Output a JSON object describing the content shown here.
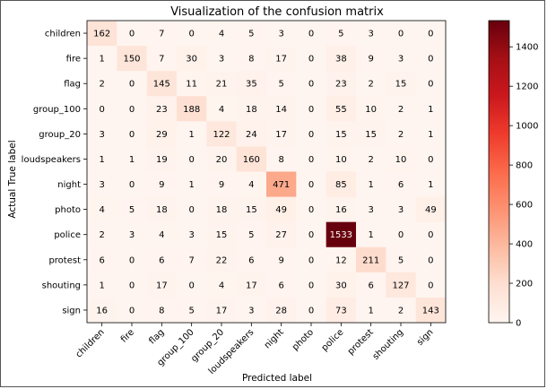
{
  "chart_data": {
    "type": "heatmap",
    "title": "Visualization of the confusion matrix",
    "xlabel": "Predicted label",
    "ylabel": "Actual True label",
    "categories": [
      "children",
      "fire",
      "flag",
      "group_100",
      "group_20",
      "loudspeakers",
      "night",
      "photo",
      "police",
      "protest",
      "shouting",
      "sign"
    ],
    "matrix": [
      [
        162,
        0,
        7,
        0,
        4,
        5,
        3,
        0,
        5,
        3,
        0,
        0
      ],
      [
        1,
        150,
        7,
        30,
        3,
        8,
        17,
        0,
        38,
        9,
        3,
        0
      ],
      [
        2,
        0,
        145,
        11,
        21,
        35,
        5,
        0,
        23,
        2,
        15,
        0
      ],
      [
        0,
        0,
        23,
        188,
        4,
        18,
        14,
        0,
        55,
        10,
        2,
        1
      ],
      [
        3,
        0,
        29,
        1,
        122,
        24,
        17,
        0,
        15,
        15,
        2,
        1
      ],
      [
        1,
        1,
        19,
        0,
        20,
        160,
        8,
        0,
        10,
        2,
        10,
        0
      ],
      [
        3,
        0,
        9,
        1,
        9,
        4,
        471,
        0,
        85,
        1,
        6,
        1
      ],
      [
        4,
        5,
        18,
        0,
        18,
        15,
        49,
        0,
        16,
        3,
        3,
        49
      ],
      [
        2,
        3,
        4,
        3,
        15,
        5,
        27,
        0,
        1533,
        1,
        0,
        0
      ],
      [
        6,
        0,
        6,
        7,
        22,
        6,
        9,
        0,
        12,
        211,
        5,
        0
      ],
      [
        1,
        0,
        17,
        0,
        4,
        17,
        6,
        0,
        30,
        6,
        127,
        0
      ],
      [
        16,
        0,
        8,
        5,
        17,
        3,
        28,
        0,
        73,
        1,
        2,
        143
      ]
    ],
    "colormap": "Reds",
    "vmin": 0,
    "vmax": 1533,
    "colorbar_ticks": [
      0,
      200,
      400,
      600,
      800,
      1000,
      1200,
      1400
    ],
    "text_color_light": "#ffffff",
    "text_color_dark": "#000000"
  }
}
